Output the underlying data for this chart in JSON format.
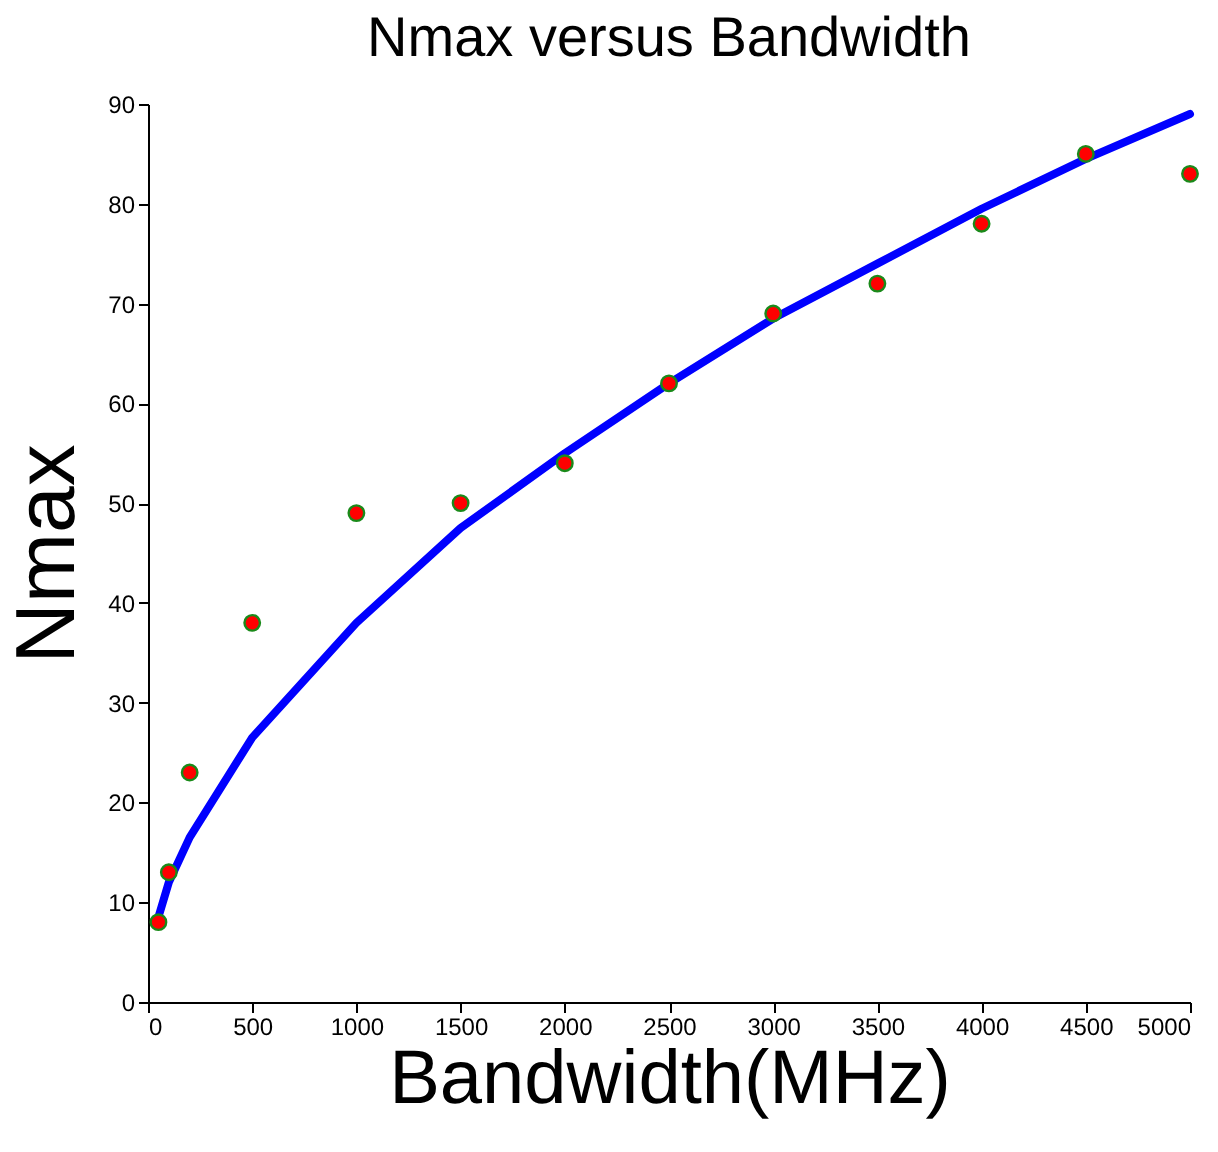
{
  "chart_data": {
    "type": "scatter",
    "title": "Nmax versus Bandwidth",
    "xlabel": "Bandwidth(MHz)",
    "ylabel": "Nmax",
    "x": [
      50,
      100,
      200,
      500,
      1000,
      1500,
      2000,
      2500,
      3000,
      3500,
      4000,
      4500,
      5000
    ],
    "series": [
      {
        "color": "#ff0000",
        "marker": "circle",
        "values": [
          8,
          13,
          23,
          38,
          49,
          50,
          54,
          62,
          69,
          72,
          78,
          85,
          83
        ]
      },
      {
        "type": "line",
        "color": "#0000ff",
        "line_style": "solid",
        "values": [
          8.5,
          12,
          16.5,
          26.5,
          38,
          47.5,
          55,
          62,
          68.5,
          74,
          79.5,
          84.5,
          89
        ]
      }
    ],
    "xlim": [
      0,
      5000
    ],
    "xticks": [
      0,
      500,
      1000,
      1500,
      2000,
      2500,
      3000,
      3500,
      4000,
      4500,
      5000
    ],
    "ylim": [
      0,
      90
    ],
    "yticks": [
      0,
      10,
      20,
      30,
      40,
      50,
      60,
      70,
      80,
      90
    ],
    "grid": false
  }
}
